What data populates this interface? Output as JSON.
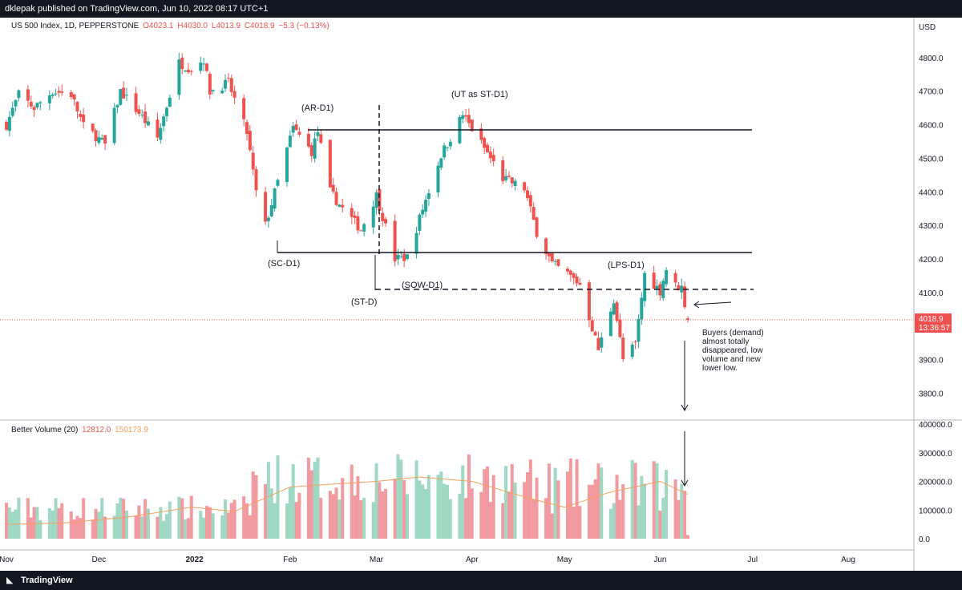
{
  "header": {
    "publisher": "dklepak published on TradingView.com, Jun 10, 2022 08:17 UTC+1"
  },
  "legend": {
    "symbol": "US 500 Index, 1D, PEPPERSTONE",
    "open": "O4023.1",
    "high": "H4030.0",
    "low": "L4013.9",
    "close": "C4018.9",
    "change": "−5.3 (−0.13%)"
  },
  "volume_legend": {
    "label": "Better Volume (20)",
    "value1": "12812.0",
    "value2": "150173.9"
  },
  "footer": {
    "brand": "TradingView"
  },
  "colors": {
    "up": "#26a69a",
    "down": "#ef5350",
    "vol_up": "#9fd9c3",
    "vol_down": "#f19ba1",
    "ma": "#f5a05a",
    "price_tag": "#f0504f"
  },
  "chart_data": {
    "type": "candlestick",
    "currency": "USD",
    "y_ticks": [
      "4800.0",
      "4700.0",
      "4600.0",
      "4500.0",
      "4400.0",
      "4300.0",
      "4200.0",
      "4100.0",
      "4000.0",
      "3900.0",
      "3800.0"
    ],
    "ylim": [
      3720,
      4900
    ],
    "volume_ticks": [
      "400000.0",
      "300000.0",
      "200000.0",
      "100000.0",
      "0.0"
    ],
    "volume_ylim": [
      0,
      400000
    ],
    "x_ticks": [
      "Nov",
      "Dec",
      "2022",
      "Feb",
      "Mar",
      "Apr",
      "May",
      "Jun",
      "Jul",
      "Aug"
    ],
    "last_price": "4018.9",
    "countdown": "13:36:57",
    "close_path": [
      [
        "2021-11-01",
        4600
      ],
      [
        "2021-11-05",
        4690
      ],
      [
        "2021-11-10",
        4650
      ],
      [
        "2021-11-16",
        4700
      ],
      [
        "2021-11-22",
        4690
      ],
      [
        "2021-11-26",
        4595
      ],
      [
        "2021-11-30",
        4566
      ],
      [
        "2021-12-03",
        4540
      ],
      [
        "2021-12-08",
        4700
      ],
      [
        "2021-12-14",
        4635
      ],
      [
        "2021-12-20",
        4560
      ],
      [
        "2021-12-27",
        4785
      ],
      [
        "2021-12-31",
        4766
      ],
      [
        "2022-01-04",
        4795
      ],
      [
        "2022-01-06",
        4700
      ],
      [
        "2022-01-12",
        4725
      ],
      [
        "2022-01-18",
        4577
      ],
      [
        "2022-01-21",
        4398
      ],
      [
        "2022-01-24",
        4300
      ],
      [
        "2022-01-28",
        4430
      ],
      [
        "2022-02-02",
        4590
      ],
      [
        "2022-02-08",
        4520
      ],
      [
        "2022-02-10",
        4580
      ],
      [
        "2022-02-14",
        4400
      ],
      [
        "2022-02-18",
        4350
      ],
      [
        "2022-02-24",
        4288
      ],
      [
        "2022-03-01",
        4390
      ],
      [
        "2022-03-07",
        4200
      ],
      [
        "2022-03-11",
        4205
      ],
      [
        "2022-03-16",
        4350
      ],
      [
        "2022-03-22",
        4510
      ],
      [
        "2022-03-29",
        4630
      ],
      [
        "2022-04-05",
        4530
      ],
      [
        "2022-04-11",
        4440
      ],
      [
        "2022-04-18",
        4410
      ],
      [
        "2022-04-22",
        4280
      ],
      [
        "2022-04-27",
        4185
      ],
      [
        "2022-05-02",
        4155
      ],
      [
        "2022-05-06",
        4125
      ],
      [
        "2022-05-12",
        3930
      ],
      [
        "2022-05-17",
        4080
      ],
      [
        "2022-05-20",
        3900
      ],
      [
        "2022-05-24",
        3945
      ],
      [
        "2022-05-27",
        4155
      ],
      [
        "2022-06-01",
        4105
      ],
      [
        "2022-06-03",
        4170
      ],
      [
        "2022-06-06",
        4120
      ],
      [
        "2022-06-08",
        4115
      ],
      [
        "2022-06-10",
        4018.9
      ]
    ],
    "volume_ma": [
      [
        "2021-11-01",
        50000
      ],
      [
        "2021-11-20",
        55000
      ],
      [
        "2021-12-10",
        75000
      ],
      [
        "2021-12-31",
        110000
      ],
      [
        "2022-01-14",
        95000
      ],
      [
        "2022-02-01",
        180000
      ],
      [
        "2022-02-14",
        190000
      ],
      [
        "2022-03-01",
        200000
      ],
      [
        "2022-03-15",
        215000
      ],
      [
        "2022-04-01",
        200000
      ],
      [
        "2022-04-20",
        140000
      ],
      [
        "2022-05-01",
        110000
      ],
      [
        "2022-05-15",
        160000
      ],
      [
        "2022-06-01",
        200000
      ],
      [
        "2022-06-10",
        155000
      ]
    ]
  },
  "annotations": {
    "ar_d1": "(AR-D1)",
    "ut_st_d1": "(UT as ST-D1)",
    "sc_d1": "(SC-D1)",
    "st_d": "(ST-D)",
    "sow_d1": "(SOW-D1)",
    "lps_d1": "(LPS-D1)",
    "note_line1": "Buyers (demand)",
    "note_line2": "almost totally",
    "note_line3": "disappeared, low",
    "note_line4": "volume and new",
    "note_line5": "lower low."
  }
}
